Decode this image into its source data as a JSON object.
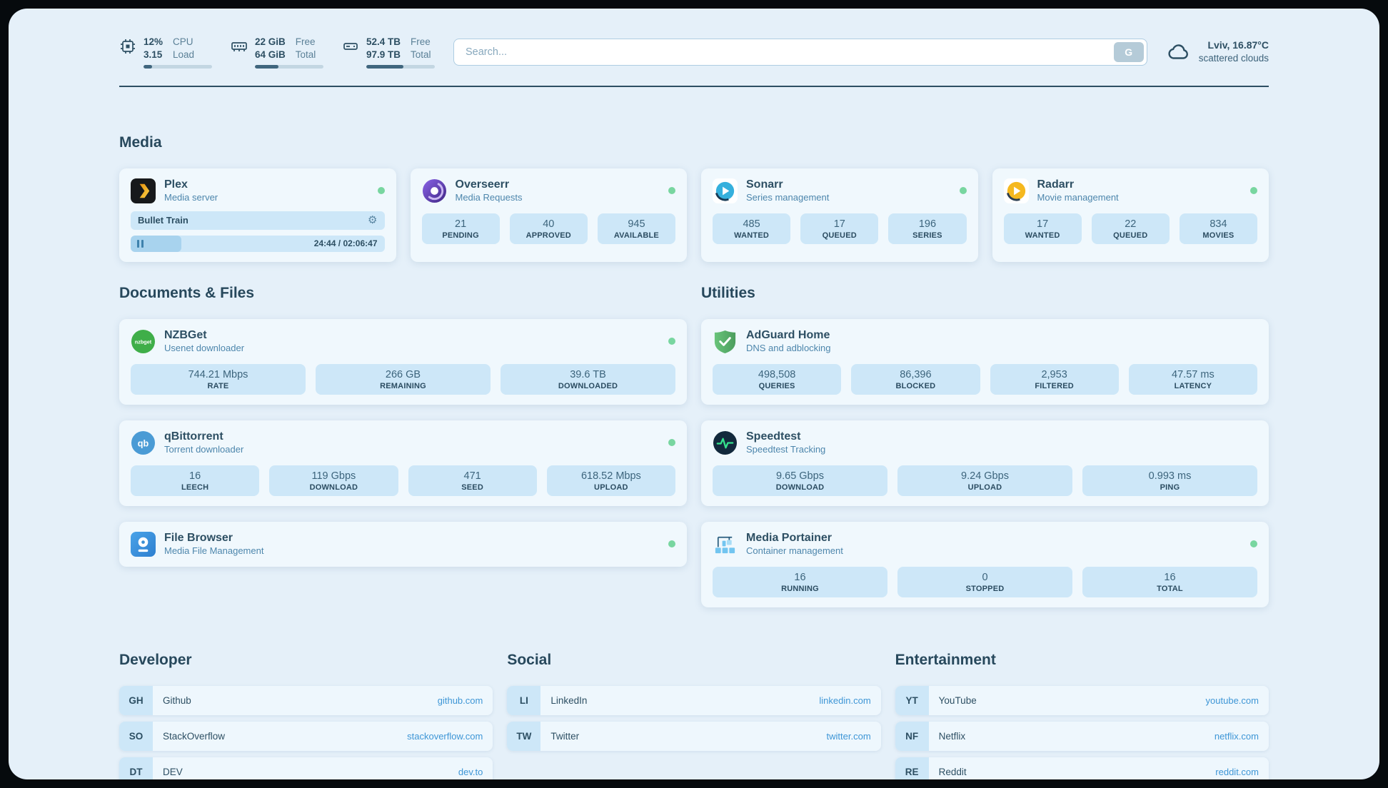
{
  "theme": {
    "page_bg": "#e5f0f9",
    "card_bg": "#f0f8fd",
    "chip_bg": "#cde7f8",
    "text_dark": "#2d4f63",
    "subtitle_blue": "#4d86ac",
    "link_blue": "#3e96d6",
    "status_green": "#78d6a0"
  },
  "topbar": {
    "cpu": {
      "value1": "12%",
      "value2": "3.15",
      "label1": "CPU",
      "label2": "Load",
      "bar_percent": 12
    },
    "memory": {
      "value1": "22 GiB",
      "value2": "64 GiB",
      "label1": "Free",
      "label2": "Total",
      "bar_percent": 34
    },
    "disk": {
      "value1": "52.4 TB",
      "value2": "97.9 TB",
      "label1": "Free",
      "label2": "Total",
      "bar_percent": 54
    },
    "search": {
      "placeholder": "Search...",
      "button_label": "G"
    },
    "weather": {
      "location": "Lviv, 16.87°C",
      "condition": "scattered clouds"
    }
  },
  "sections": {
    "media": {
      "title": "Media"
    },
    "documents": {
      "title": "Documents & Files"
    },
    "utilities": {
      "title": "Utilities"
    },
    "developer": {
      "title": "Developer"
    },
    "social": {
      "title": "Social"
    },
    "entertainment": {
      "title": "Entertainment"
    }
  },
  "services": {
    "plex": {
      "name": "Plex",
      "subtitle": "Media server",
      "now_playing": "Bullet Train",
      "time": "24:44 / 02:06:47",
      "progress_percent": 20
    },
    "overseerr": {
      "name": "Overseerr",
      "subtitle": "Media Requests",
      "stats": [
        {
          "value": "21",
          "label": "PENDING"
        },
        {
          "value": "40",
          "label": "APPROVED"
        },
        {
          "value": "945",
          "label": "AVAILABLE"
        }
      ]
    },
    "sonarr": {
      "name": "Sonarr",
      "subtitle": "Series management",
      "stats": [
        {
          "value": "485",
          "label": "WANTED"
        },
        {
          "value": "17",
          "label": "QUEUED"
        },
        {
          "value": "196",
          "label": "SERIES"
        }
      ]
    },
    "radarr": {
      "name": "Radarr",
      "subtitle": "Movie management",
      "stats": [
        {
          "value": "17",
          "label": "WANTED"
        },
        {
          "value": "22",
          "label": "QUEUED"
        },
        {
          "value": "834",
          "label": "MOVIES"
        }
      ]
    },
    "nzbget": {
      "name": "NZBGet",
      "subtitle": "Usenet downloader",
      "stats": [
        {
          "value": "744.21 Mbps",
          "label": "RATE"
        },
        {
          "value": "266 GB",
          "label": "REMAINING"
        },
        {
          "value": "39.6 TB",
          "label": "DOWNLOADED"
        }
      ]
    },
    "qbittorrent": {
      "name": "qBittorrent",
      "subtitle": "Torrent downloader",
      "stats": [
        {
          "value": "16",
          "label": "LEECH"
        },
        {
          "value": "119 Gbps",
          "label": "DOWNLOAD"
        },
        {
          "value": "471",
          "label": "SEED"
        },
        {
          "value": "618.52 Mbps",
          "label": "UPLOAD"
        }
      ]
    },
    "filebrowser": {
      "name": "File Browser",
      "subtitle": "Media File Management"
    },
    "adguard": {
      "name": "AdGuard Home",
      "subtitle": "DNS and adblocking",
      "stats": [
        {
          "value": "498,508",
          "label": "QUERIES"
        },
        {
          "value": "86,396",
          "label": "BLOCKED"
        },
        {
          "value": "2,953",
          "label": "FILTERED"
        },
        {
          "value": "47.57 ms",
          "label": "LATENCY"
        }
      ]
    },
    "speedtest": {
      "name": "Speedtest",
      "subtitle": "Speedtest Tracking",
      "stats": [
        {
          "value": "9.65 Gbps",
          "label": "DOWNLOAD"
        },
        {
          "value": "9.24 Gbps",
          "label": "UPLOAD"
        },
        {
          "value": "0.993 ms",
          "label": "PING"
        }
      ]
    },
    "portainer": {
      "name": "Media Portainer",
      "subtitle": "Container management",
      "stats": [
        {
          "value": "16",
          "label": "RUNNING"
        },
        {
          "value": "0",
          "label": "STOPPED"
        },
        {
          "value": "16",
          "label": "TOTAL"
        }
      ]
    }
  },
  "bookmarks": {
    "developer": [
      {
        "abbr": "GH",
        "name": "Github",
        "url": "github.com"
      },
      {
        "abbr": "SO",
        "name": "StackOverflow",
        "url": "stackoverflow.com"
      },
      {
        "abbr": "DT",
        "name": "DEV",
        "url": "dev.to"
      }
    ],
    "social": [
      {
        "abbr": "LI",
        "name": "LinkedIn",
        "url": "linkedin.com"
      },
      {
        "abbr": "TW",
        "name": "Twitter",
        "url": "twitter.com"
      }
    ],
    "entertainment": [
      {
        "abbr": "YT",
        "name": "YouTube",
        "url": "youtube.com"
      },
      {
        "abbr": "NF",
        "name": "Netflix",
        "url": "netflix.com"
      },
      {
        "abbr": "RE",
        "name": "Reddit",
        "url": "reddit.com"
      }
    ]
  }
}
